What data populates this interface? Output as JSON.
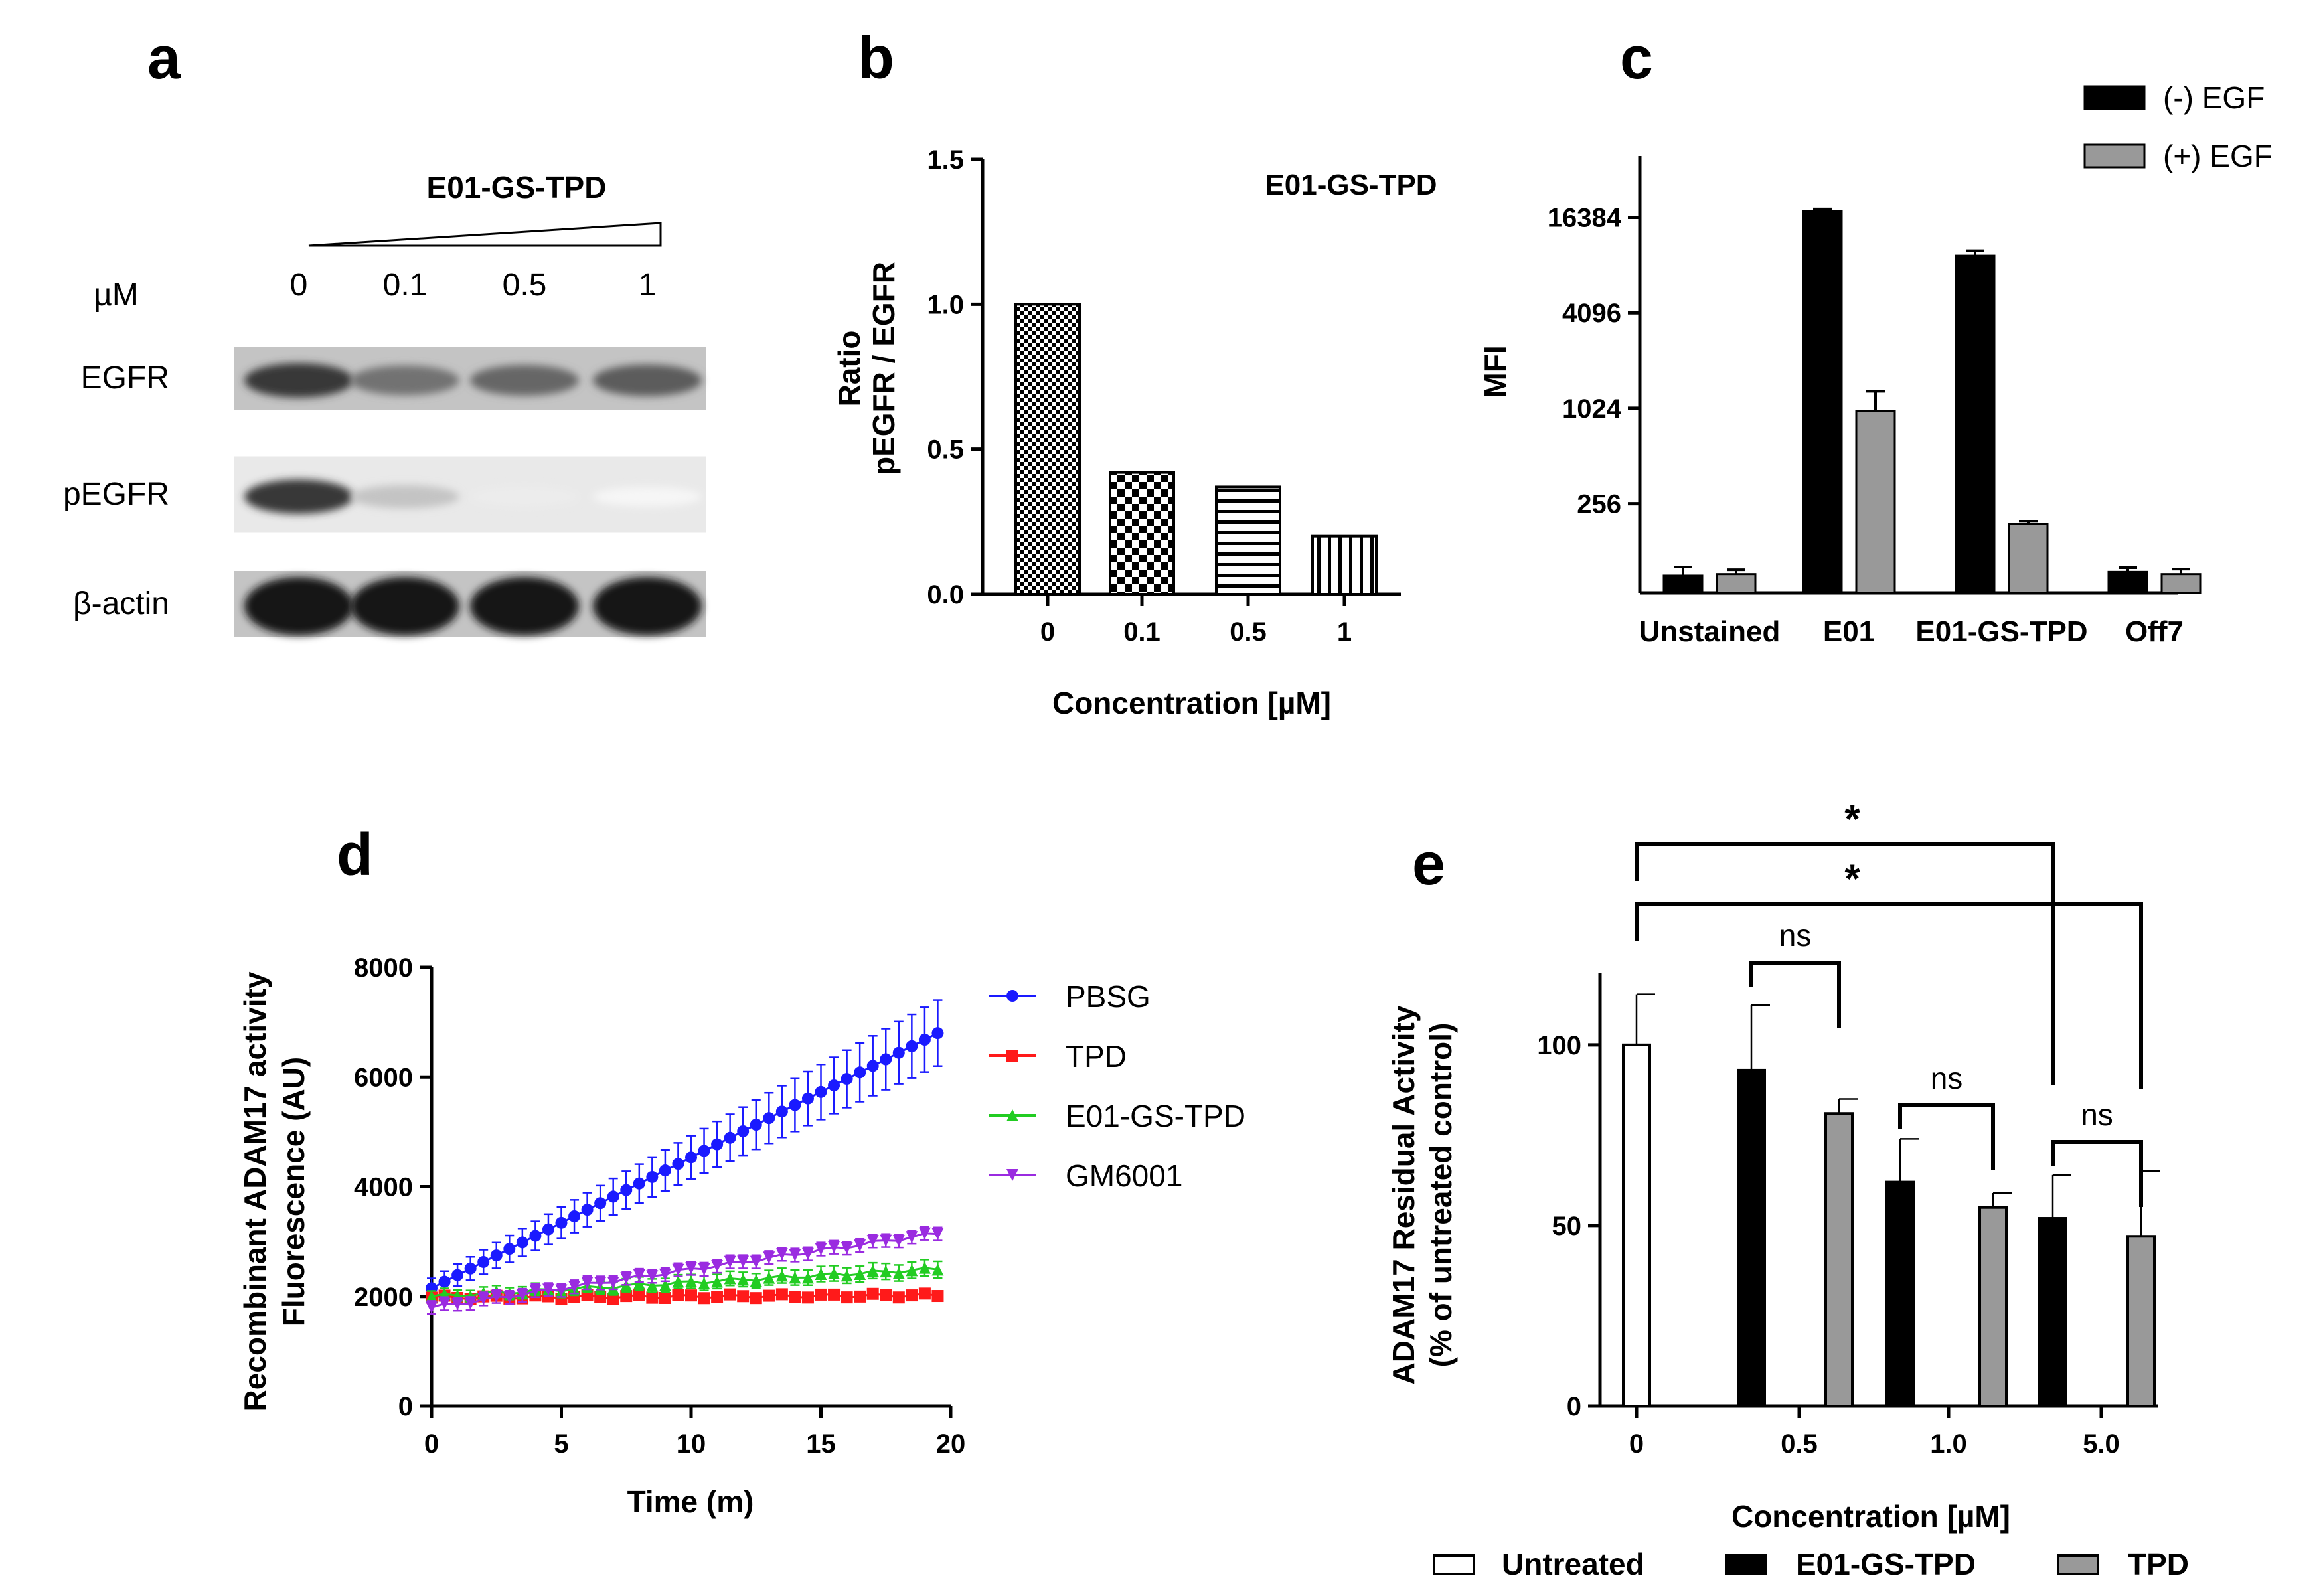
{
  "panels": {
    "a": "a",
    "b": "b",
    "c": "c",
    "d": "d",
    "e": "e"
  },
  "colors": {
    "black": "#000000",
    "gray": "#999999",
    "blue": "#1a1aff",
    "red": "#ff1a1a",
    "green": "#22cc22",
    "purple": "#9a2be0"
  },
  "blot": {
    "treatment": "E01-GS-TPD",
    "conc_unit": "µM",
    "concentrations": [
      "0",
      "0.1",
      "0.5",
      "1"
    ],
    "rows": [
      {
        "label": "EGFR",
        "intensities": [
          0.85,
          0.6,
          0.65,
          0.7
        ]
      },
      {
        "label": "pEGFR",
        "intensities": [
          0.85,
          0.25,
          0.08,
          0.04
        ]
      },
      {
        "label": "β-actin",
        "intensities": [
          1.0,
          1.0,
          1.0,
          1.0
        ]
      }
    ]
  },
  "chart_data": [
    {
      "id": "b",
      "type": "bar",
      "title": "E01-GS-TPD",
      "ylabel_line1": "Ratio",
      "ylabel_line2": "pEGFR / EGFR",
      "xlabel": "Concentration [µM]",
      "categories": [
        "0",
        "0.1",
        "0.5",
        "1"
      ],
      "values": [
        1.0,
        0.42,
        0.37,
        0.2
      ],
      "patterns": [
        "checker-fine",
        "checker-coarse",
        "horizontal",
        "vertical"
      ],
      "ylim": [
        0,
        1.5
      ],
      "yticks": [
        0.0,
        0.5,
        1.0,
        1.5
      ],
      "ytick_labels": [
        "0.0",
        "0.5",
        "1.0",
        "1.5"
      ]
    },
    {
      "id": "c",
      "type": "bar",
      "ylabel": "MFI",
      "yscale": "log2",
      "ylim": [
        70,
        40000
      ],
      "yticks": [
        256,
        1024,
        4096,
        16384
      ],
      "ytick_labels": [
        "256",
        "1024",
        "4096",
        "16384"
      ],
      "categories": [
        "Unstained",
        "E01",
        "E01-GS-TPD",
        "Off7"
      ],
      "series": [
        {
          "name": "(-) EGF",
          "color": "#000000",
          "values": [
            90,
            18000,
            9400,
            95
          ],
          "errors": [
            12,
            500,
            700,
            6
          ]
        },
        {
          "name": "(+) EGF",
          "color": "#999999",
          "values": [
            92,
            980,
            190,
            92
          ],
          "errors": [
            6,
            330,
            8,
            7
          ]
        }
      ],
      "legend": [
        "(-) EGF",
        "(+) EGF"
      ]
    },
    {
      "id": "d",
      "type": "line",
      "ylabel_line1": "Recombinant ADAM17 activity",
      "ylabel_line2": "Fluorescence (AU)",
      "xlabel": "Time (m)",
      "xlim": [
        0,
        20
      ],
      "ylim": [
        0,
        8000
      ],
      "xticks": [
        0,
        5,
        10,
        15,
        20
      ],
      "xtick_labels": [
        "0",
        "5",
        "10",
        "15",
        "20"
      ],
      "yticks": [
        0,
        2000,
        4000,
        6000,
        8000
      ],
      "ytick_labels": [
        "0",
        "2000",
        "4000",
        "6000",
        "8000"
      ],
      "x_end": 19.5,
      "x_step": 0.5,
      "series": [
        {
          "name": "PBSG",
          "color": "#1a1aff",
          "marker": "circle",
          "start": 2150,
          "end": 6800,
          "err_start": 180,
          "err_end": 600
        },
        {
          "name": "TPD",
          "color": "#ff1a1a",
          "marker": "square",
          "start": 1980,
          "end": 2020,
          "err_start": 60,
          "err_end": 60
        },
        {
          "name": "E01-GS-TPD",
          "color": "#22cc22",
          "marker": "triangle-up",
          "start": 2000,
          "end": 2500,
          "err_start": 100,
          "err_end": 150
        },
        {
          "name": "GM6001",
          "color": "#9a2be0",
          "marker": "triangle-down",
          "start": 1800,
          "end": 3150,
          "err_start": 120,
          "err_end": 120
        }
      ]
    },
    {
      "id": "e",
      "type": "bar",
      "ylabel_line1": "ADAM17 Residual Activity",
      "ylabel_line2": "(% of untreated control)",
      "xlabel": "Concentration [µM]",
      "ylim": [
        0,
        120
      ],
      "yticks": [
        0,
        50,
        100
      ],
      "ytick_labels": [
        "0",
        "50",
        "100"
      ],
      "categories": [
        "0",
        "0.5",
        "1.0",
        "5.0"
      ],
      "bars": [
        {
          "group": 0,
          "series": "Untreated",
          "value": 100,
          "error": 14
        },
        {
          "group": 1,
          "series": "E01-GS-TPD",
          "value": 93,
          "error": 18
        },
        {
          "group": 1,
          "series": "TPD",
          "value": 81,
          "error": 4
        },
        {
          "group": 2,
          "series": "E01-GS-TPD",
          "value": 62,
          "error": 12
        },
        {
          "group": 2,
          "series": "TPD",
          "value": 55,
          "error": 4
        },
        {
          "group": 3,
          "series": "E01-GS-TPD",
          "value": 52,
          "error": 12
        },
        {
          "group": 3,
          "series": "TPD",
          "value": 47,
          "error": 18
        }
      ],
      "legend": [
        "Untreated",
        "E01-GS-TPD",
        "TPD"
      ],
      "significance": [
        {
          "label": "ns",
          "from_bar": 1,
          "to_bar": 2
        },
        {
          "label": "ns",
          "from_bar": 3,
          "to_bar": 4
        },
        {
          "label": "ns",
          "from_bar": 5,
          "to_bar": 6
        },
        {
          "label": "*",
          "from_bar": 0,
          "to_bar": 5
        },
        {
          "label": "*",
          "from_bar": 0,
          "to_bar": 6
        }
      ]
    }
  ]
}
